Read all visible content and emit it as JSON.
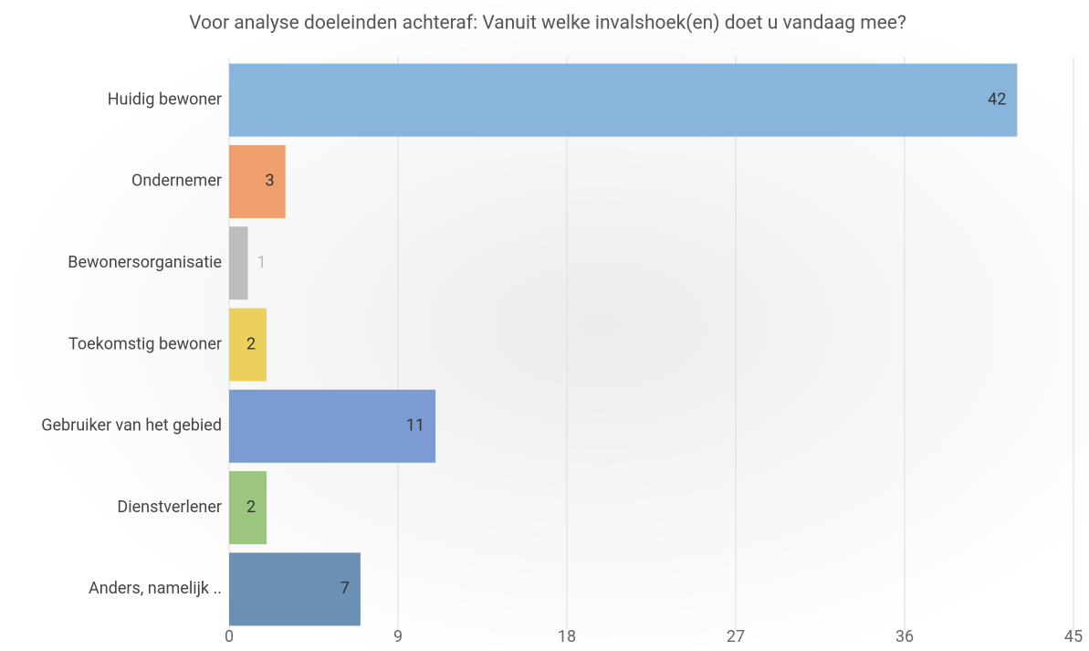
{
  "chart_data": {
    "type": "bar",
    "orientation": "horizontal",
    "title": "Voor analyse doeleinden achteraf: Vanuit welke invalshoek(en) doet u vandaag mee?",
    "categories": [
      "Huidig bewoner",
      "Ondernemer",
      "Bewonersorganisatie",
      "Toekomstig bewoner",
      "Gebruiker van het gebied",
      "Dienstverlener",
      "Anders, namelijk .."
    ],
    "values": [
      42,
      3,
      1,
      2,
      11,
      2,
      7
    ],
    "colors": [
      "#89b4dc",
      "#ef9e6e",
      "#bdbdbd",
      "#ecd05e",
      "#7b9bd3",
      "#9cc67e",
      "#6a90b3"
    ],
    "xlim": [
      0,
      45
    ],
    "xticks": [
      0,
      9,
      18,
      27,
      36,
      45
    ],
    "grid": true
  }
}
